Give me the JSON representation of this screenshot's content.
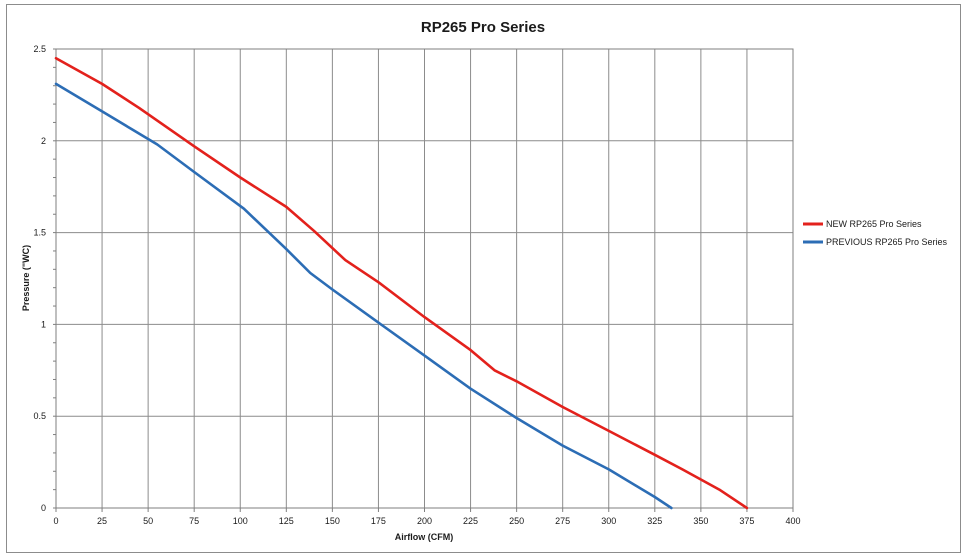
{
  "chart_data": {
    "type": "line",
    "title": "RP265 Pro Series",
    "xlabel": "Airflow (CFM)",
    "ylabel": "Pressure (\"WC)",
    "xlim": [
      0,
      400
    ],
    "ylim": [
      0,
      2.5
    ],
    "x_ticks": [
      "0",
      "25",
      "50",
      "75",
      "100",
      "125",
      "150",
      "175",
      "200",
      "225",
      "250",
      "275",
      "300",
      "325",
      "350",
      "375",
      "400"
    ],
    "y_ticks": [
      "0",
      "0.5",
      "1",
      "1.5",
      "2",
      "2.5"
    ],
    "grid": "vertical-and-horizontal",
    "legend_position": "right",
    "series": [
      {
        "name": "NEW RP265 Pro Series",
        "color": "#e3211c",
        "points": [
          [
            0,
            2.45
          ],
          [
            25,
            2.31
          ],
          [
            45,
            2.18
          ],
          [
            75,
            1.97
          ],
          [
            100,
            1.8
          ],
          [
            125,
            1.64
          ],
          [
            140,
            1.51
          ],
          [
            157,
            1.35
          ],
          [
            175,
            1.23
          ],
          [
            200,
            1.04
          ],
          [
            225,
            0.86
          ],
          [
            238,
            0.75
          ],
          [
            250,
            0.69
          ],
          [
            275,
            0.55
          ],
          [
            300,
            0.42
          ],
          [
            325,
            0.29
          ],
          [
            340,
            0.21
          ],
          [
            360,
            0.1
          ],
          [
            375,
            0.0
          ]
        ]
      },
      {
        "name": "PREVIOUS RP265 Pro Series",
        "color": "#2c6db5",
        "points": [
          [
            0,
            2.31
          ],
          [
            25,
            2.16
          ],
          [
            55,
            1.98
          ],
          [
            75,
            1.83
          ],
          [
            102,
            1.63
          ],
          [
            125,
            1.41
          ],
          [
            138,
            1.28
          ],
          [
            150,
            1.19
          ],
          [
            175,
            1.01
          ],
          [
            200,
            0.83
          ],
          [
            225,
            0.65
          ],
          [
            250,
            0.49
          ],
          [
            275,
            0.34
          ],
          [
            300,
            0.21
          ],
          [
            325,
            0.06
          ],
          [
            334,
            0.0
          ]
        ]
      }
    ]
  }
}
